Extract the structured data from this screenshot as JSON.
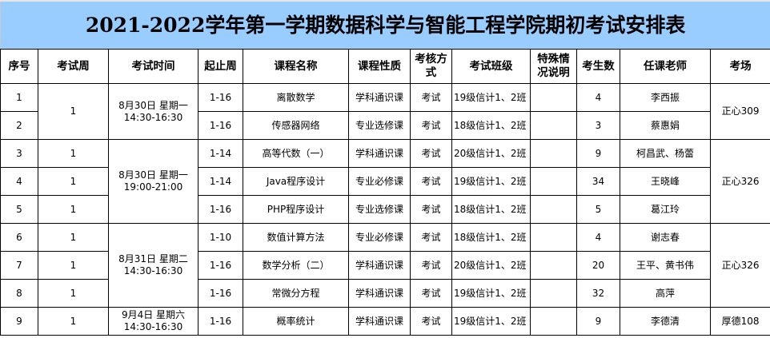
{
  "title": "2021-2022学年第一学期数据科学与智能工程学院期初考试安排表",
  "colors": {
    "title_bg": "#99ccff",
    "grid": "#000000"
  },
  "headers": [
    "序号",
    "考试周",
    "考试时间",
    "起止周",
    "课程名称",
    "课程性质",
    "考核方式",
    "考试班级",
    "特殊情况说明",
    "考生数",
    "任课老师",
    "考场"
  ],
  "time_groups": [
    {
      "rows": 2,
      "time": "8月30日 星期一\n14:30-16:30",
      "room": "正心309"
    },
    {
      "rows": 3,
      "time": "8月30日 星期一\n19:00-21:00",
      "room": "正心326"
    },
    {
      "rows": 3,
      "time": "8月31日 星期二\n14:30-16:30",
      "room": "正心326"
    },
    {
      "rows": 1,
      "time": "9月4日 星期六\n14:30-16:30",
      "room": "厚德108"
    }
  ],
  "rows": [
    {
      "no": "1",
      "week": "1",
      "span": "1-16",
      "course": "离散数学",
      "type": "学科通识课",
      "method": "考试",
      "class": "19级信计1、2班",
      "note": "",
      "count": "4",
      "teacher": "李西振"
    },
    {
      "no": "2",
      "week": "",
      "span": "1-16",
      "course": "传感器网络",
      "type": "专业选修课",
      "method": "考试",
      "class": "18级信计1、2班",
      "note": "",
      "count": "3",
      "teacher": "蔡惠娟"
    },
    {
      "no": "3",
      "week": "1",
      "span": "1-14",
      "course": "高等代数（一）",
      "type": "学科通识课",
      "method": "考试",
      "class": "20级信计1、2班",
      "note": "",
      "count": "9",
      "teacher": "柯昌武、杨蕾"
    },
    {
      "no": "4",
      "week": "1",
      "span": "1-14",
      "course": "Java程序设计",
      "type": "专业必修课",
      "method": "考试",
      "class": "19级信计1、2班",
      "note": "",
      "count": "34",
      "teacher": "王晓峰"
    },
    {
      "no": "5",
      "week": "1",
      "span": "1-16",
      "course": "PHP程序设计",
      "type": "专业选修课",
      "method": "考试",
      "class": "18级信计1、2班",
      "note": "",
      "count": "5",
      "teacher": "葛江玲"
    },
    {
      "no": "6",
      "week": "1",
      "span": "1-10",
      "course": "数值计算方法",
      "type": "专业必修课",
      "method": "考试",
      "class": "18级信计1、2班",
      "note": "",
      "count": "4",
      "teacher": "谢志春"
    },
    {
      "no": "7",
      "week": "1",
      "span": "1-16",
      "course": "数学分析（二）",
      "type": "学科通识课",
      "method": "考试",
      "class": "20级信计1、2班",
      "note": "",
      "count": "20",
      "teacher": "王平、黄书伟"
    },
    {
      "no": "8",
      "week": "1",
      "span": "1-16",
      "course": "常微分方程",
      "type": "学科通识课",
      "method": "考试",
      "class": "19级信计1、2班",
      "note": "",
      "count": "32",
      "teacher": "高萍"
    },
    {
      "no": "9",
      "week": "1",
      "span": "1-16",
      "course": "概率统计",
      "type": "学科通识课",
      "method": "考试",
      "class": "19级信计1、2班",
      "note": "",
      "count": "9",
      "teacher": "李德清"
    }
  ]
}
